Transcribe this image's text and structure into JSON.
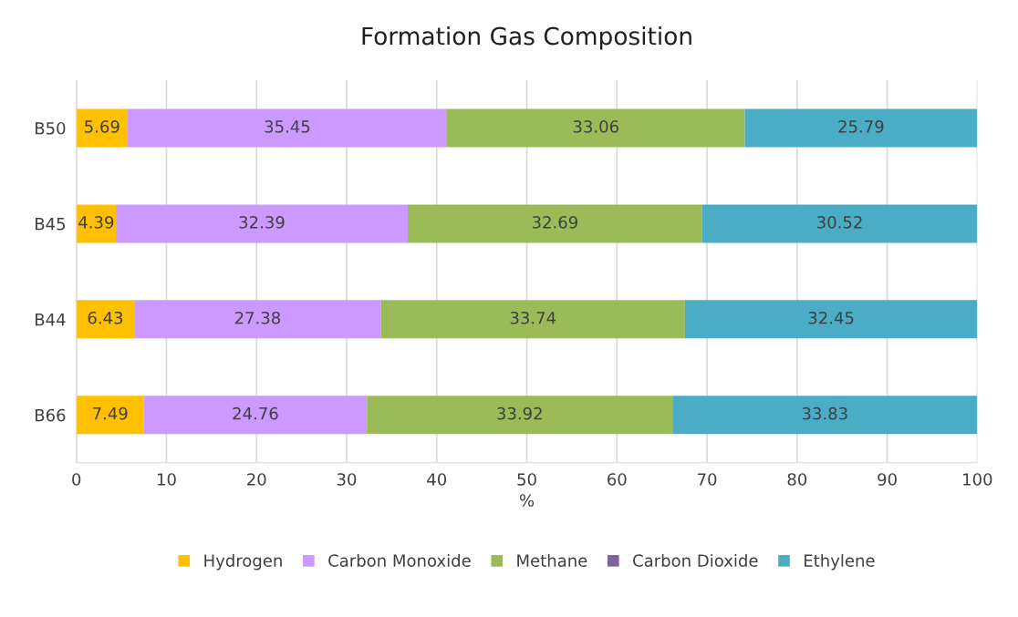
{
  "chart_data": {
    "type": "bar",
    "orientation": "horizontal",
    "stacked": true,
    "title": "Formation Gas Composition",
    "xlabel": "%",
    "categories": [
      "B50",
      "B45",
      "B44",
      "B66"
    ],
    "series": [
      {
        "name": "Hydrogen",
        "color": "#ffc000",
        "values": [
          5.69,
          4.39,
          6.43,
          7.49
        ]
      },
      {
        "name": "Carbon Monoxide",
        "color": "#cc99ff",
        "values": [
          35.45,
          32.39,
          27.38,
          24.76
        ]
      },
      {
        "name": "Methane",
        "color": "#9bbb59",
        "values": [
          33.06,
          32.69,
          33.74,
          33.92
        ]
      },
      {
        "name": "Carbon Dioxide",
        "color": "#8064a2",
        "values": [
          null,
          null,
          null,
          null
        ]
      },
      {
        "name": "Ethylene",
        "color": "#4bacc6",
        "values": [
          25.79,
          30.52,
          32.45,
          33.83
        ]
      }
    ],
    "xlim": [
      0,
      100
    ],
    "xticks": [
      0,
      10,
      20,
      30,
      40,
      50,
      60,
      70,
      80,
      90,
      100
    ],
    "grid": "x",
    "legend": "bottom",
    "data_labels": true
  }
}
